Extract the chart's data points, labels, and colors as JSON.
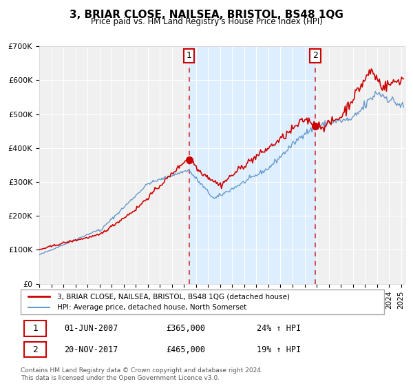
{
  "title": "3, BRIAR CLOSE, NAILSEA, BRISTOL, BS48 1QG",
  "subtitle": "Price paid vs. HM Land Registry's House Price Index (HPI)",
  "legend_line1": "3, BRIAR CLOSE, NAILSEA, BRISTOL, BS48 1QG (detached house)",
  "legend_line2": "HPI: Average price, detached house, North Somerset",
  "annotation1_label": "1",
  "annotation1_date": "01-JUN-2007",
  "annotation1_price": "£365,000",
  "annotation1_hpi": "24% ↑ HPI",
  "annotation2_label": "2",
  "annotation2_date": "20-NOV-2017",
  "annotation2_price": "£465,000",
  "annotation2_hpi": "19% ↑ HPI",
  "footer1": "Contains HM Land Registry data © Crown copyright and database right 2024.",
  "footer2": "This data is licensed under the Open Government Licence v3.0.",
  "sale1_year": 2007.42,
  "sale1_value": 365000,
  "sale2_year": 2017.89,
  "sale2_value": 465000,
  "red_color": "#cc0000",
  "blue_color": "#6699cc",
  "bg_color": "#ddeeff",
  "plot_bg": "#f5f5f5",
  "shade_color": "#ddeeff",
  "ylim": [
    0,
    700000
  ],
  "yticks": [
    0,
    100000,
    200000,
    300000,
    400000,
    500000,
    600000,
    700000
  ],
  "xlim_start": 1995.0,
  "xlim_end": 2025.3
}
